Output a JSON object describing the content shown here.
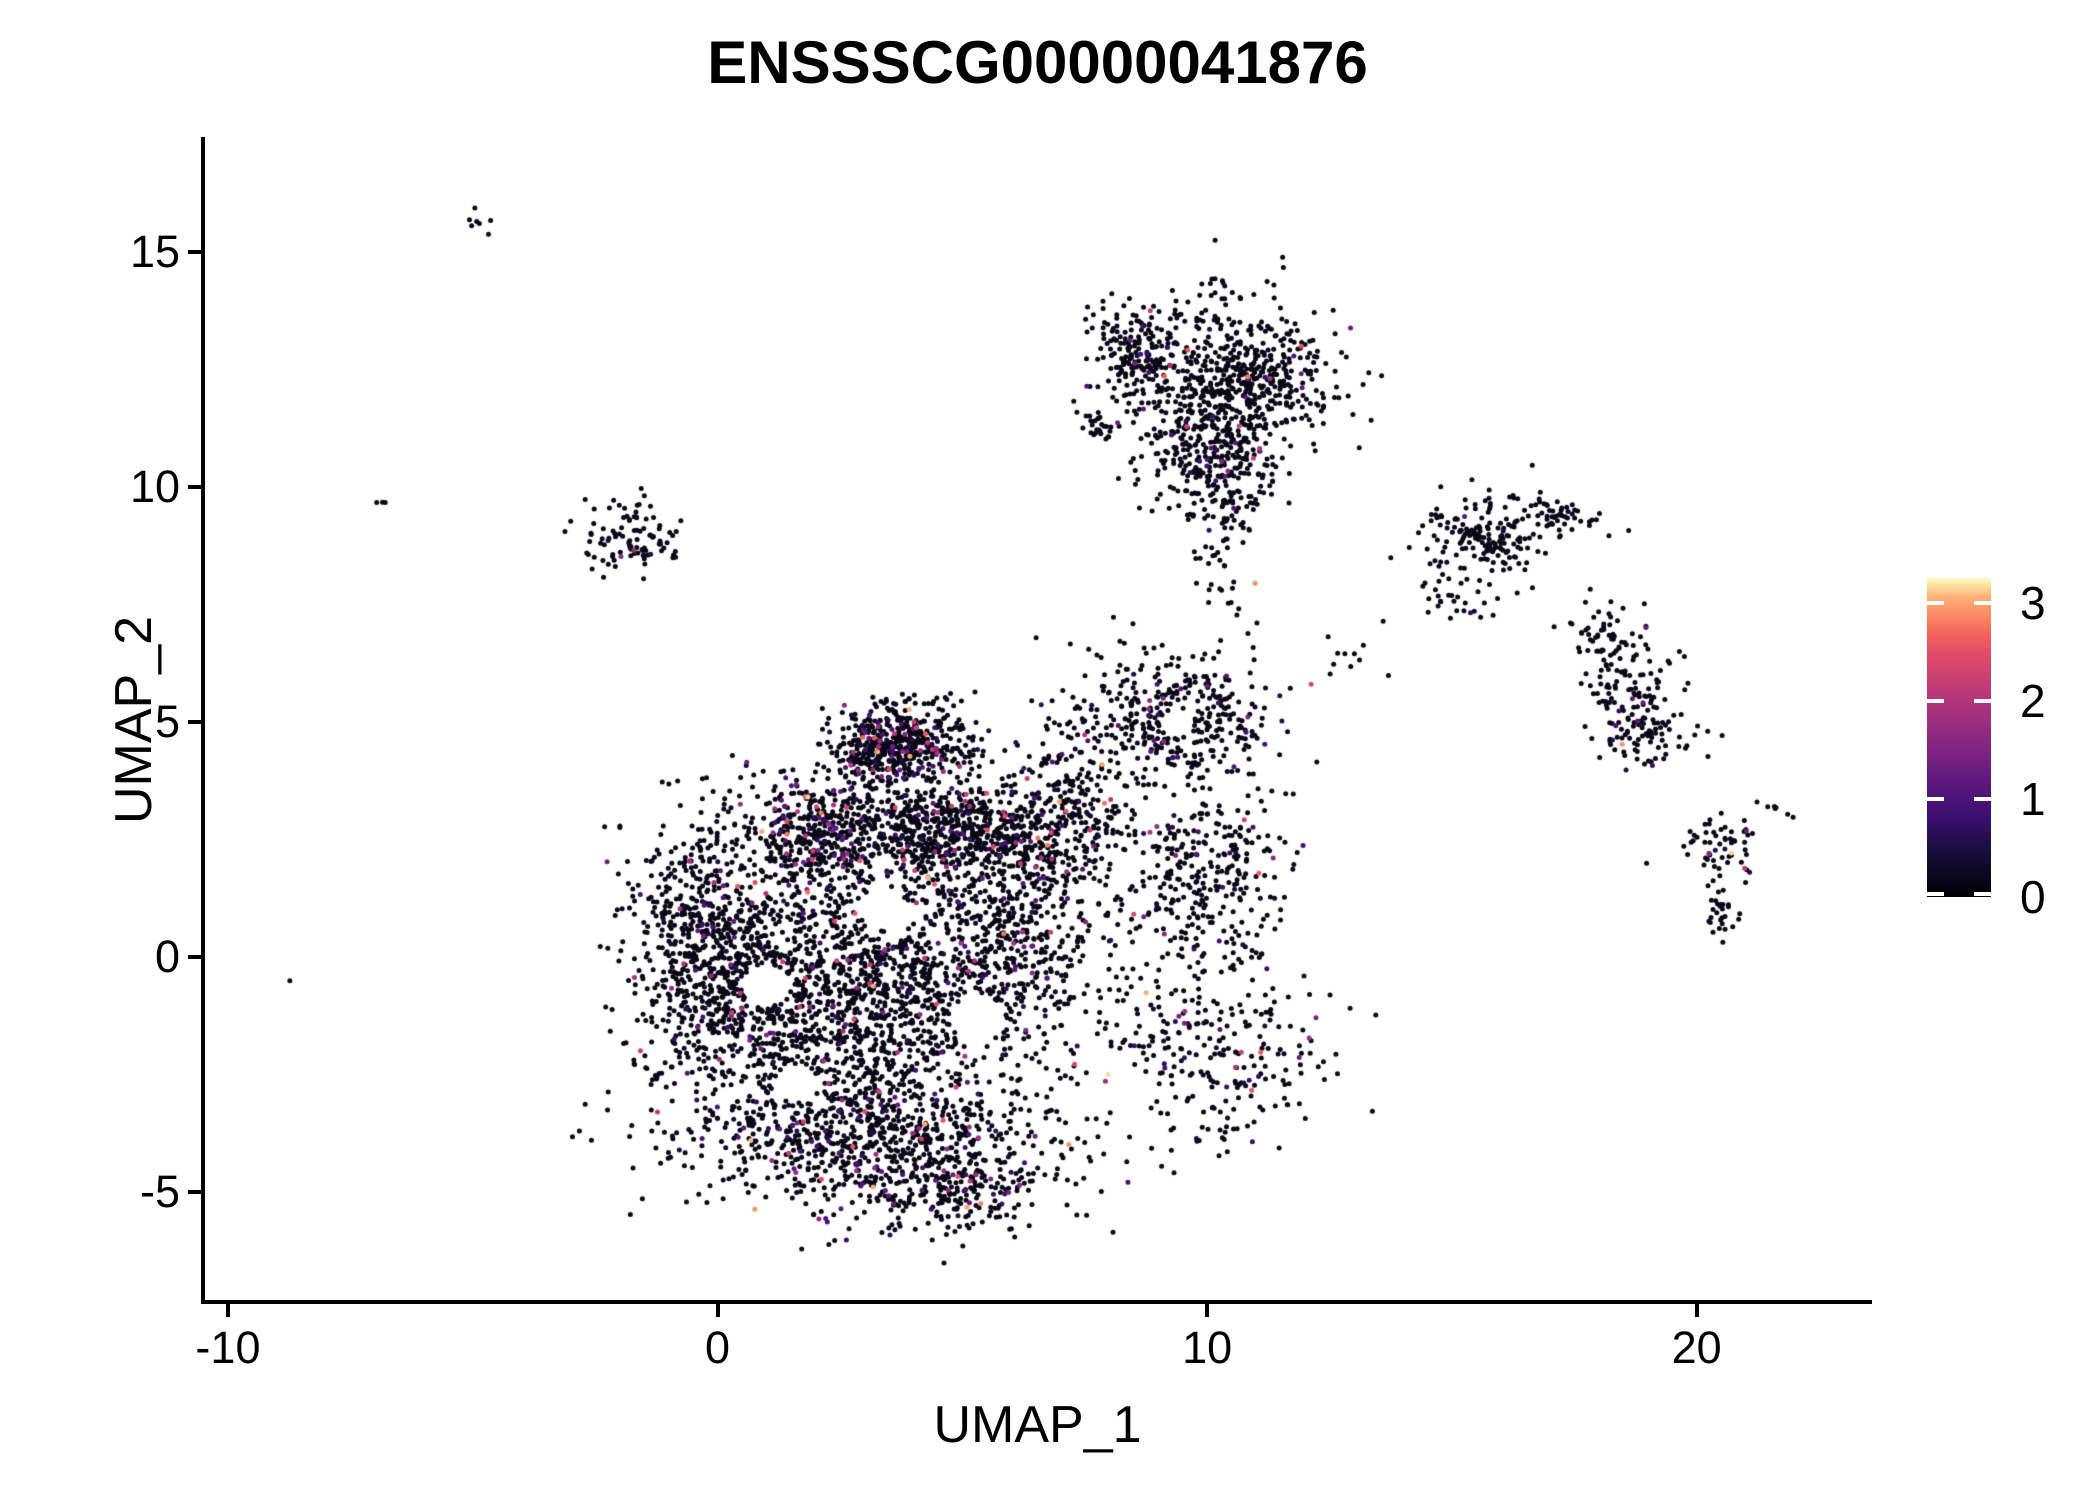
{
  "title": "ENSSSCG00000041876",
  "axes": {
    "x_label": "UMAP_1",
    "y_label": "UMAP_2",
    "x_ticks": [
      -10,
      0,
      10,
      20
    ],
    "y_ticks": [
      15,
      10,
      5,
      0,
      -5
    ],
    "x_range": [
      -10.51,
      23.54
    ],
    "y_range": [
      -7.34,
      17.45
    ]
  },
  "legend": {
    "ticks": [
      3,
      2,
      1,
      0
    ],
    "max_value": 3.26,
    "colormap": "magma",
    "stops": [
      [
        0.0,
        "#000004"
      ],
      [
        0.13,
        "#140e36"
      ],
      [
        0.25,
        "#3b0f70"
      ],
      [
        0.38,
        "#641a80"
      ],
      [
        0.5,
        "#8c2981"
      ],
      [
        0.63,
        "#b73779"
      ],
      [
        0.75,
        "#de4968"
      ],
      [
        0.82,
        "#f1605d"
      ],
      [
        0.88,
        "#fb8861"
      ],
      [
        0.94,
        "#feb078"
      ],
      [
        1.0,
        "#fcfdbf"
      ]
    ]
  },
  "colors": {
    "background": "#ffffff",
    "axis": "#000000",
    "zero_expression_dot": "#0b0817"
  },
  "chart_data": {
    "type": "scatter",
    "title": "ENSSSCG00000041876",
    "xlabel": "UMAP_1",
    "ylabel": "UMAP_2",
    "xlim": [
      -10.51,
      23.54
    ],
    "ylim": [
      -7.34,
      17.45
    ],
    "legend_range": [
      0,
      3.26
    ],
    "point_radius_px": 2.5,
    "seed": 42,
    "value_distribution": [
      {
        "p": 0.55,
        "range": [
          0.4,
          1.1
        ]
      },
      {
        "p": 0.27,
        "range": [
          1.1,
          1.9
        ]
      },
      {
        "p": 0.13,
        "range": [
          1.9,
          2.6
        ]
      },
      {
        "p": 0.05,
        "range": [
          2.6,
          3.2
        ]
      }
    ],
    "voids": [
      {
        "cx": 1.0,
        "cy": -0.6,
        "rx": 0.5,
        "ry": 0.45
      },
      {
        "cx": 1.6,
        "cy": -2.7,
        "rx": 0.45,
        "ry": 0.4
      },
      {
        "cx": 5.3,
        "cy": -1.3,
        "rx": 0.55,
        "ry": 0.5
      },
      {
        "cx": 3.4,
        "cy": 1.0,
        "rx": 0.5,
        "ry": 0.4
      },
      {
        "cx": 9.4,
        "cy": 5.0,
        "rx": 0.35,
        "ry": 0.3
      }
    ],
    "clusters": [
      {
        "name": "cap",
        "cx": 3.8,
        "cy": 4.6,
        "sx": 0.72,
        "sy": 0.42,
        "n": 420,
        "expr": 0.1,
        "void": true
      },
      {
        "name": "cap-hot",
        "cx": 3.2,
        "cy": 4.3,
        "sx": 0.5,
        "sy": 0.35,
        "n": 130,
        "expr": 0.28,
        "void": true
      },
      {
        "name": "band",
        "cx": 4.4,
        "cy": 2.7,
        "sx": 1.55,
        "sy": 0.55,
        "n": 780,
        "expr": 0.09,
        "void": true
      },
      {
        "name": "band-hot",
        "cx": 1.9,
        "cy": 2.6,
        "sx": 0.55,
        "sy": 0.6,
        "n": 230,
        "expr": 0.25,
        "void": true
      },
      {
        "name": "left-bulge",
        "cx": -0.2,
        "cy": 0.2,
        "sx": 0.85,
        "sy": 1.5,
        "n": 700,
        "expr": 0.06,
        "void": true
      },
      {
        "name": "core",
        "cx": 2.6,
        "cy": -0.9,
        "sx": 1.6,
        "sy": 1.5,
        "n": 1400,
        "expr": 0.07,
        "void": true
      },
      {
        "name": "core-right",
        "cx": 5.8,
        "cy": 0.6,
        "sx": 1.1,
        "sy": 1.6,
        "n": 700,
        "expr": 0.09,
        "void": true
      },
      {
        "name": "bottom",
        "cx": 3.2,
        "cy": -4.0,
        "sx": 1.9,
        "sy": 0.75,
        "n": 750,
        "expr": 0.11,
        "void": true
      },
      {
        "name": "bottom-tip",
        "cx": 4.8,
        "cy": -5.0,
        "sx": 0.9,
        "sy": 0.45,
        "n": 180,
        "expr": 0.1,
        "void": true
      },
      {
        "name": "right-blob",
        "cx": 10.0,
        "cy": 1.8,
        "sx": 0.85,
        "sy": 0.95,
        "n": 300,
        "expr": 0.06,
        "void": true
      },
      {
        "name": "shoulder",
        "cx": 9.3,
        "cy": 5.0,
        "sx": 0.95,
        "sy": 0.75,
        "n": 380,
        "expr": 0.05,
        "void": true
      },
      {
        "name": "right-hook",
        "cx": 10.2,
        "cy": -1.9,
        "sx": 1.15,
        "sy": 1.05,
        "n": 280,
        "expr": 0.09,
        "void": true
      },
      {
        "name": "neck",
        "cx": 7.2,
        "cy": 3.0,
        "sx": 0.6,
        "sy": 1.0,
        "n": 220,
        "expr": 0.08,
        "void": true
      },
      {
        "name": "top-tail",
        "cx": 10.4,
        "cy": 9.5,
        "sx": 0.4,
        "sy": 1.0,
        "n": 110,
        "expr": 0.03
      },
      {
        "name": "top-left",
        "cx": 8.6,
        "cy": 12.8,
        "sx": 0.55,
        "sy": 0.55,
        "n": 220,
        "expr": 0.05
      },
      {
        "name": "top-main",
        "cx": 10.8,
        "cy": 12.3,
        "sx": 0.95,
        "sy": 0.75,
        "n": 520,
        "expr": 0.04
      },
      {
        "name": "top-low",
        "cx": 10.0,
        "cy": 10.8,
        "sx": 0.75,
        "sy": 0.65,
        "n": 260,
        "expr": 0.06
      },
      {
        "name": "top-comet",
        "cx": 7.8,
        "cy": 11.3,
        "sx": 0.2,
        "sy": 0.13,
        "n": 22,
        "expr": 0,
        "angle": -35
      },
      {
        "name": "top-spike",
        "cx": 10.1,
        "cy": 14.2,
        "sx": 0.18,
        "sy": 0.45,
        "n": 14,
        "expr": 0
      },
      {
        "name": "dash-topleft",
        "cx": -4.8,
        "cy": 15.6,
        "sx": 0.2,
        "sy": 0.1,
        "n": 7,
        "expr": 0,
        "angle": -35
      },
      {
        "name": "dot-pair",
        "cx": -6.9,
        "cy": 9.7,
        "sx": 0.1,
        "sy": 0.08,
        "n": 3,
        "expr": 0,
        "angle": -40
      },
      {
        "name": "lone-dot",
        "cx": -8.7,
        "cy": -0.5,
        "sx": 0.04,
        "sy": 0.03,
        "n": 1,
        "expr": 0
      },
      {
        "name": "hook-island",
        "cx": -1.7,
        "cy": 8.9,
        "sx": 0.6,
        "sy": 0.42,
        "n": 100,
        "expr": 0.03
      },
      {
        "name": "comet-head",
        "cx": 15.7,
        "cy": 8.9,
        "sx": 0.6,
        "sy": 0.45,
        "n": 170,
        "expr": 0.03
      },
      {
        "name": "comet-arm",
        "cx": 17.2,
        "cy": 9.4,
        "sx": 0.55,
        "sy": 0.18,
        "n": 50,
        "expr": 0,
        "angle": -18
      },
      {
        "name": "comet-scatter",
        "cx": 15.3,
        "cy": 7.7,
        "sx": 0.65,
        "sy": 0.45,
        "n": 35,
        "expr": 0.02
      },
      {
        "name": "bridge-dots",
        "cx": 12.7,
        "cy": 6.4,
        "sx": 0.45,
        "sy": 0.2,
        "n": 10,
        "expr": 0,
        "angle": -20
      },
      {
        "name": "snake-top",
        "cx": 18.1,
        "cy": 6.8,
        "sx": 0.4,
        "sy": 0.35,
        "n": 60,
        "expr": 0.02
      },
      {
        "name": "snake-mid",
        "cx": 18.6,
        "cy": 5.6,
        "sx": 0.45,
        "sy": 0.5,
        "n": 90,
        "expr": 0.05
      },
      {
        "name": "snake-low",
        "cx": 19.1,
        "cy": 4.7,
        "sx": 0.5,
        "sy": 0.35,
        "n": 70,
        "expr": 0.07
      },
      {
        "name": "x-cluster",
        "cx": 20.5,
        "cy": 2.4,
        "sx": 0.4,
        "sy": 0.35,
        "n": 55,
        "expr": 0.04
      },
      {
        "name": "dash-right",
        "cx": 21.6,
        "cy": 3.2,
        "sx": 0.22,
        "sy": 0.1,
        "n": 7,
        "expr": 0,
        "angle": -35
      },
      {
        "name": "trail-right",
        "cx": 20.4,
        "cy": 1.6,
        "sx": 0.12,
        "sy": 0.45,
        "n": 10,
        "expr": 0
      },
      {
        "name": "mini-blob",
        "cx": 20.5,
        "cy": 0.9,
        "sx": 0.22,
        "sy": 0.18,
        "n": 22,
        "expr": 0
      }
    ]
  }
}
